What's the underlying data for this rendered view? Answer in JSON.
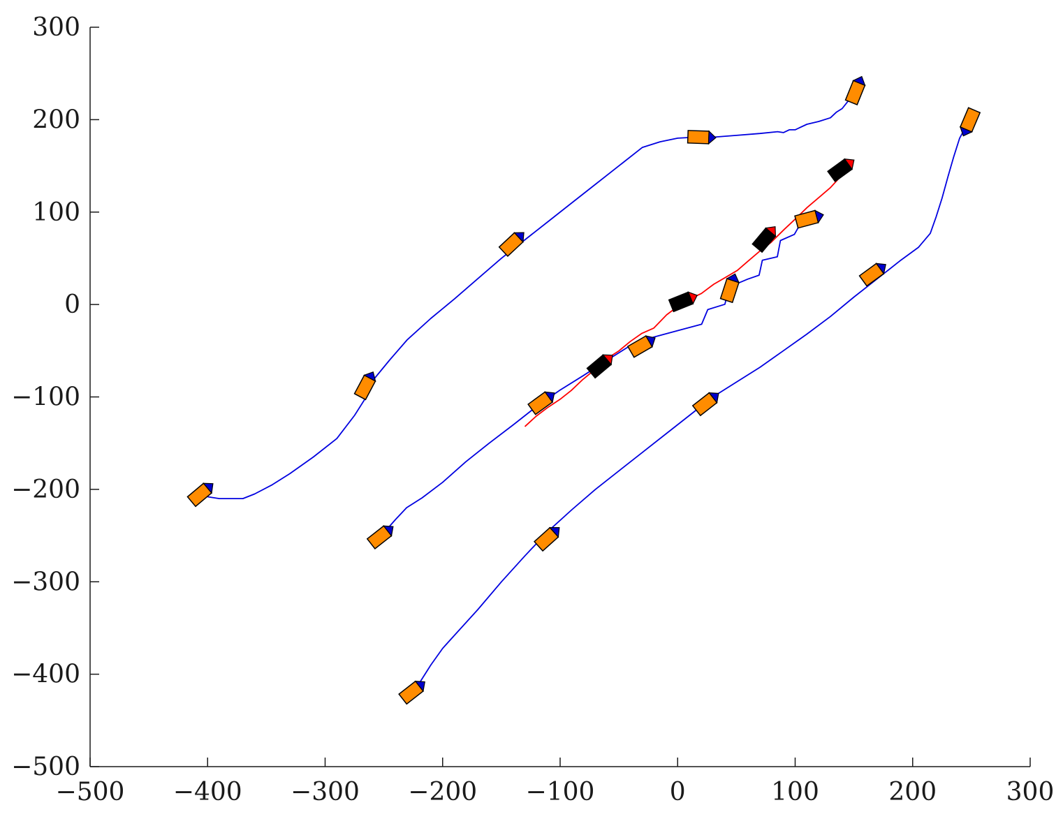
{
  "chart_data": {
    "type": "line",
    "title": "",
    "xlabel": "",
    "ylabel": "",
    "xlim": [
      -500,
      300
    ],
    "ylim": [
      -500,
      300
    ],
    "grid": false,
    "legend": "none",
    "x_ticks": [
      -500,
      -400,
      -300,
      -200,
      -100,
      0,
      100,
      200,
      300
    ],
    "y_ticks": [
      -500,
      -400,
      -300,
      -200,
      -100,
      0,
      100,
      200,
      300
    ],
    "x_tick_labels": [
      "−500",
      "−400",
      "−300",
      "−200",
      "−100",
      "0",
      "100",
      "200",
      "300"
    ],
    "y_tick_labels": [
      "−500",
      "−400",
      "−300",
      "−200",
      "−100",
      "0",
      "100",
      "200",
      "300"
    ],
    "colors": {
      "trajectory": "#0000e0",
      "target_trajectory": "#ff0000",
      "agent_body": "#ff8c00",
      "agent_nose": "#0000cc",
      "target_body": "#000000",
      "target_nose": "#ff0000",
      "axis": "#1a1a1a"
    },
    "series": [
      {
        "role": "pursuer",
        "color": "#0000e0",
        "x": [
          -400,
          -390,
          -380,
          -370,
          -360,
          -345,
          -330,
          -310,
          -290,
          -275,
          -265,
          -258,
          -245,
          -230,
          -210,
          -190,
          -170,
          -150,
          -130,
          -110,
          -90,
          -70,
          -50,
          -30,
          -15,
          0,
          15,
          30,
          50,
          70,
          85,
          90,
          95,
          100,
          110,
          120,
          130,
          135,
          140,
          145,
          150,
          155
        ],
        "y": [
          -208,
          -210,
          -210,
          -210,
          -205,
          -195,
          -183,
          -165,
          -145,
          -120,
          -100,
          -80,
          -60,
          -38,
          -15,
          6,
          28,
          50,
          70,
          90,
          110,
          130,
          150,
          170,
          176,
          180,
          181,
          181,
          183,
          185,
          187,
          186,
          189,
          189,
          195,
          198,
          202,
          208,
          212,
          220,
          228,
          240
        ]
      },
      {
        "role": "pursuer",
        "color": "#0000e0",
        "x": [
          -248,
          -240,
          -230,
          -218,
          -200,
          -180,
          -160,
          -140,
          -120,
          -100,
          -80,
          -60,
          -40,
          -20,
          0,
          20,
          25,
          40,
          45,
          50,
          60,
          70,
          72,
          85,
          88,
          100,
          105,
          112,
          120
        ],
        "y": [
          -244,
          -232,
          -220,
          -210,
          -192,
          -170,
          -150,
          -130,
          -110,
          -93,
          -77,
          -60,
          -45,
          -35,
          -28,
          -21,
          -5,
          0,
          22,
          23,
          27,
          32,
          48,
          52,
          70,
          75,
          88,
          92,
          97
        ],
        "noise": 1.2
      },
      {
        "role": "pursuer",
        "color": "#0000e0",
        "x": [
          -220,
          -215,
          -210,
          -200,
          -190,
          -170,
          -150,
          -130,
          -110,
          -90,
          -70,
          -50,
          -30,
          -10,
          10,
          30,
          50,
          70,
          90,
          110,
          130,
          150,
          170,
          190,
          205,
          215,
          220,
          225,
          230,
          235,
          240,
          245,
          248,
          250
        ],
        "y": [
          -410,
          -400,
          -390,
          -372,
          -358,
          -330,
          -300,
          -272,
          -245,
          -222,
          -200,
          -180,
          -160,
          -140,
          -120,
          -100,
          -84,
          -68,
          -50,
          -32,
          -13,
          8,
          28,
          48,
          62,
          77,
          95,
          115,
          138,
          160,
          180,
          192,
          200,
          190
        ]
      },
      {
        "role": "target",
        "color": "#ff0000",
        "x": [
          -130,
          -120,
          -110,
          -100,
          -90,
          -80,
          -70,
          -60,
          -50,
          -40,
          -30,
          -20,
          -10,
          0,
          10,
          20,
          30,
          40,
          50,
          60,
          70,
          80,
          90,
          100,
          110,
          120,
          130,
          140,
          145
        ],
        "y": [
          -132,
          -120,
          -112,
          -103,
          -92,
          -82,
          -70,
          -58,
          -50,
          -40,
          -32,
          -26,
          -12,
          -2,
          5,
          12,
          22,
          30,
          38,
          46,
          57,
          68,
          82,
          92,
          105,
          115,
          127,
          140,
          147
        ],
        "noise": 1.5
      }
    ],
    "markers": [
      {
        "type": "pursuer",
        "x": -405,
        "y": -204,
        "angle": 40
      },
      {
        "type": "pursuer",
        "x": -265,
        "y": -87,
        "angle": 62
      },
      {
        "type": "pursuer",
        "x": -140,
        "y": 67,
        "angle": 43
      },
      {
        "type": "pursuer",
        "x": 20,
        "y": 181,
        "angle": -2
      },
      {
        "type": "pursuer",
        "x": 152,
        "y": 232,
        "angle": 68
      },
      {
        "type": "pursuer",
        "x": -252,
        "y": -250,
        "angle": 38
      },
      {
        "type": "pursuer",
        "x": -115,
        "y": -105,
        "angle": 36
      },
      {
        "type": "pursuer",
        "x": -30,
        "y": -44,
        "angle": 30
      },
      {
        "type": "pursuer",
        "x": 45,
        "y": 18,
        "angle": 72
      },
      {
        "type": "pursuer",
        "x": 112,
        "y": 93,
        "angle": 15
      },
      {
        "type": "pursuer",
        "x": -225,
        "y": -418,
        "angle": 38
      },
      {
        "type": "pursuer",
        "x": -110,
        "y": -252,
        "angle": 42
      },
      {
        "type": "pursuer",
        "x": 25,
        "y": -106,
        "angle": 38
      },
      {
        "type": "pursuer",
        "x": 167,
        "y": 34,
        "angle": 36
      },
      {
        "type": "pursuer",
        "x": 248,
        "y": 197,
        "angle": -113
      },
      {
        "type": "target",
        "x": -65,
        "y": -65,
        "angle": 40
      },
      {
        "type": "target",
        "x": 5,
        "y": 4,
        "angle": 22
      },
      {
        "type": "target",
        "x": 75,
        "y": 72,
        "angle": 50
      },
      {
        "type": "target",
        "x": 140,
        "y": 147,
        "angle": 36
      }
    ]
  }
}
